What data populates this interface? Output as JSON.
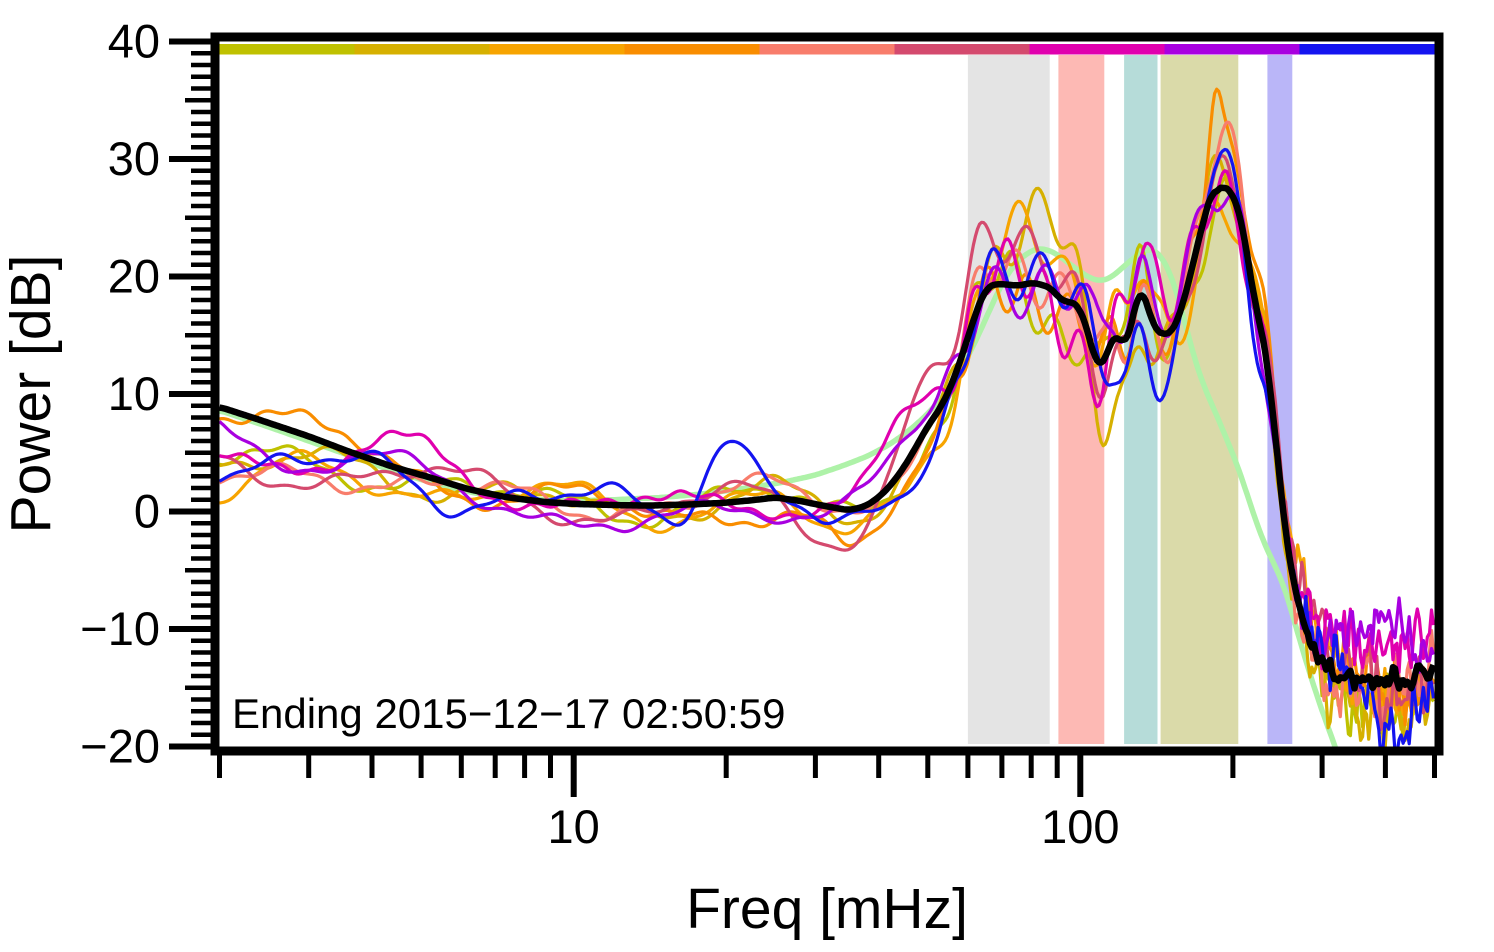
{
  "chart_data": {
    "type": "line",
    "title": "",
    "xlabel": "Freq [mHz]",
    "ylabel": "Power [dB]",
    "annotation": "Ending 2015−12−17 02:50:59",
    "x_axis": {
      "scale": "log",
      "min": 2,
      "max": 500,
      "unit": "mHz",
      "major_ticks": [
        {
          "value": 10,
          "label": "10"
        },
        {
          "value": 100,
          "label": "100"
        }
      ],
      "minor_ticks": [
        2,
        3,
        4,
        5,
        6,
        7,
        8,
        9,
        20,
        30,
        40,
        50,
        60,
        70,
        80,
        90,
        200,
        300,
        400,
        500
      ]
    },
    "y_axis": {
      "min": -20,
      "max": 40,
      "unit": "dB",
      "major_ticks": [
        {
          "value": 40,
          "label": "40"
        },
        {
          "value": 30,
          "label": "30"
        },
        {
          "value": 20,
          "label": "20"
        },
        {
          "value": 10,
          "label": "10"
        },
        {
          "value": 0,
          "label": "0"
        },
        {
          "value": -10,
          "label": "−10"
        },
        {
          "value": -20,
          "label": "−20"
        }
      ],
      "minor_step": 1,
      "medium_step": 5
    },
    "grid": false,
    "legend": "none",
    "highlight_bands": [
      {
        "name": "band-gray",
        "f_min": 60,
        "f_max": 87,
        "color": "#e4e4e4"
      },
      {
        "name": "band-pink",
        "f_min": 90.5,
        "f_max": 111.5,
        "color": "#fdb9b4"
      },
      {
        "name": "band-teal",
        "f_min": 122,
        "f_max": 142,
        "color": "#b6dcd9"
      },
      {
        "name": "band-olive",
        "f_min": 144,
        "f_max": 205,
        "color": "#dadaa9"
      },
      {
        "name": "band-lavender",
        "f_min": 234,
        "f_max": 262,
        "color": "#bab6f8"
      }
    ],
    "colorbar_segments": [
      "#bfc100",
      "#d6b000",
      "#f7a400",
      "#f98d00",
      "#f87d6c",
      "#d44a6e",
      "#e000ae",
      "#a800e0",
      "#1414f0"
    ],
    "series": {
      "mean": {
        "name": "mean-spectrum",
        "color": "#000000",
        "points": [
          [
            2,
            8.9
          ],
          [
            2.4,
            7.8
          ],
          [
            3,
            6.4
          ],
          [
            3.6,
            5.1
          ],
          [
            4.4,
            3.8
          ],
          [
            5.2,
            2.9
          ],
          [
            6.2,
            1.9
          ],
          [
            7.4,
            1.2
          ],
          [
            8.8,
            0.8
          ],
          [
            10,
            0.65
          ],
          [
            12,
            0.55
          ],
          [
            14,
            0.5
          ],
          [
            17,
            0.6
          ],
          [
            20,
            0.75
          ],
          [
            23,
            1.0
          ],
          [
            25,
            1.2
          ],
          [
            28,
            0.9
          ],
          [
            31,
            0.5
          ],
          [
            35,
            0.1
          ],
          [
            38,
            0.5
          ],
          [
            41,
            1.6
          ],
          [
            44,
            3.2
          ],
          [
            47,
            5.2
          ],
          [
            50,
            7.3
          ],
          [
            53,
            8.8
          ],
          [
            56,
            11.0
          ],
          [
            59,
            13.8
          ],
          [
            62,
            16.8
          ],
          [
            65,
            19.0
          ],
          [
            68,
            19.4
          ],
          [
            72,
            19.3
          ],
          [
            76,
            19.2
          ],
          [
            80,
            19.5
          ],
          [
            84,
            19.3
          ],
          [
            88,
            19.0
          ],
          [
            92,
            17.8
          ],
          [
            96,
            17.9
          ],
          [
            100,
            17.4
          ],
          [
            104,
            15.0
          ],
          [
            108,
            12.0
          ],
          [
            111,
            12.5
          ],
          [
            114,
            14.0
          ],
          [
            118,
            15.6
          ],
          [
            121,
            14.2
          ],
          [
            123,
            13.6
          ],
          [
            127,
            16.5
          ],
          [
            131,
            19.6
          ],
          [
            134,
            18.5
          ],
          [
            139,
            15.6
          ],
          [
            144,
            15.2
          ],
          [
            148,
            14.9
          ],
          [
            153,
            15.5
          ],
          [
            158,
            17.0
          ],
          [
            163,
            19.3
          ],
          [
            169,
            22.0
          ],
          [
            175,
            24.9
          ],
          [
            180,
            26.5
          ],
          [
            184,
            28.0
          ],
          [
            188,
            27.2
          ],
          [
            191,
            27.0
          ],
          [
            196,
            28.3
          ],
          [
            200,
            27.2
          ],
          [
            204,
            25.2
          ],
          [
            210,
            24.8
          ],
          [
            215,
            21.0
          ],
          [
            220,
            17.2
          ],
          [
            226,
            16.9
          ],
          [
            232,
            13.5
          ],
          [
            238,
            10.0
          ],
          [
            244,
            5.5
          ],
          [
            250,
            0.8
          ],
          [
            256,
            -3.4
          ],
          [
            262,
            -5.2
          ],
          [
            268,
            -7.6
          ],
          [
            275,
            -9.6
          ],
          [
            282,
            -11.0
          ],
          [
            292,
            -12.3
          ],
          [
            305,
            -13.4
          ],
          [
            320,
            -14.3
          ],
          [
            340,
            -14.0
          ],
          [
            360,
            -14.4
          ],
          [
            380,
            -14.1
          ],
          [
            400,
            -14.6
          ],
          [
            420,
            -13.9
          ],
          [
            440,
            -14.3
          ],
          [
            460,
            -14.0
          ],
          [
            480,
            -13.6
          ],
          [
            500,
            -13.2
          ]
        ]
      },
      "smooth_model": {
        "name": "smooth-model",
        "color": "#aef2a8",
        "points": [
          [
            2,
            8.6
          ],
          [
            2.5,
            7.2
          ],
          [
            3,
            6.0
          ],
          [
            3.7,
            4.6
          ],
          [
            4.5,
            3.3
          ],
          [
            5.5,
            2.2
          ],
          [
            6.5,
            1.5
          ],
          [
            8,
            1.05
          ],
          [
            10,
            0.9
          ],
          [
            12,
            1.0
          ],
          [
            15,
            1.2
          ],
          [
            18,
            1.5
          ],
          [
            22,
            2.0
          ],
          [
            26,
            2.5
          ],
          [
            30,
            3.1
          ],
          [
            34,
            3.9
          ],
          [
            38,
            4.7
          ],
          [
            42,
            5.7
          ],
          [
            46,
            6.9
          ],
          [
            50,
            8.3
          ],
          [
            54,
            10.0
          ],
          [
            58,
            12.0
          ],
          [
            62,
            14.4
          ],
          [
            66,
            17.0
          ],
          [
            70,
            19.4
          ],
          [
            74,
            21.0
          ],
          [
            78,
            21.9
          ],
          [
            82,
            22.4
          ],
          [
            86,
            22.3
          ],
          [
            90,
            21.9
          ],
          [
            95,
            21.1
          ],
          [
            100,
            20.4
          ],
          [
            105,
            19.8
          ],
          [
            110,
            19.6
          ],
          [
            115,
            19.9
          ],
          [
            120,
            20.6
          ],
          [
            126,
            21.4
          ],
          [
            132,
            22.1
          ],
          [
            137,
            22.4
          ],
          [
            142,
            22.1
          ],
          [
            147,
            21.2
          ],
          [
            152,
            19.8
          ],
          [
            157,
            17.8
          ],
          [
            162,
            15.6
          ],
          [
            167,
            13.4
          ],
          [
            172,
            11.6
          ],
          [
            178,
            10.0
          ],
          [
            184,
            8.6
          ],
          [
            190,
            7.2
          ],
          [
            196,
            5.8
          ],
          [
            203,
            4.2
          ],
          [
            210,
            2.4
          ],
          [
            218,
            0.2
          ],
          [
            228,
            -2.2
          ],
          [
            238,
            -4.0
          ],
          [
            248,
            -5.5
          ],
          [
            256,
            -7.2
          ],
          [
            264,
            -9.2
          ],
          [
            272,
            -11.2
          ],
          [
            282,
            -13.4
          ],
          [
            292,
            -15.5
          ],
          [
            302,
            -17.3
          ],
          [
            312,
            -19.0
          ],
          [
            322,
            -20.6
          ],
          [
            330,
            -22.0
          ]
        ]
      },
      "ensemble": [
        {
          "name": "spectrum-1",
          "color": "#bfc100",
          "seed": 101,
          "features": [
            [
              1.6,
              -5.2,
              0.22
            ],
            [
              88,
              -4,
              0.05
            ],
            [
              125,
              3.2,
              0.04
            ],
            [
              420,
              -1.5,
              0.25
            ]
          ]
        },
        {
          "name": "spectrum-2",
          "color": "#d6b000",
          "seed": 202,
          "features": [
            [
              1.6,
              -5.0,
              0.22
            ],
            [
              80,
              4,
              0.045
            ],
            [
              95,
              4.2,
              0.035
            ],
            [
              112,
              -4.5,
              0.04
            ],
            [
              400,
              -1.5,
              0.25
            ]
          ]
        },
        {
          "name": "spectrum-3",
          "color": "#f7a400",
          "seed": 303,
          "features": [
            [
              1.6,
              -7.6,
              0.22
            ],
            [
              33,
              -3.2,
              0.06
            ],
            [
              75,
              3,
              0.05
            ],
            [
              128,
              3.5,
              0.04
            ]
          ]
        },
        {
          "name": "spectrum-4",
          "color": "#f98d00",
          "seed": 404,
          "features": [
            [
              2.6,
              0.6,
              0.2
            ],
            [
              25,
              -1.8,
              0.08
            ],
            [
              35,
              -3.8,
              0.05
            ],
            [
              90,
              -3,
              0.05
            ],
            [
              160,
              3,
              0.05
            ],
            [
              184,
              8,
              0.013
            ],
            [
              215,
              3,
              0.03
            ]
          ]
        },
        {
          "name": "spectrum-5",
          "color": "#f87d6c",
          "seed": 505,
          "features": [
            [
              1.6,
              -7.2,
              0.22
            ],
            [
              28,
              1.2,
              0.08
            ],
            [
              100,
              2,
              0.05
            ],
            [
              190,
              3.2,
              0.02
            ]
          ]
        },
        {
          "name": "spectrum-6",
          "color": "#d44a6e",
          "seed": 606,
          "features": [
            [
              1.6,
              -5.6,
              0.22
            ],
            [
              30,
              -2.5,
              0.07
            ],
            [
              48,
              5.5,
              0.05
            ],
            [
              63,
              4,
              0.04
            ],
            [
              185,
              2,
              0.03
            ]
          ]
        },
        {
          "name": "spectrum-7",
          "color": "#e000ae",
          "seed": 707,
          "features": [
            [
              1.6,
              -4.4,
              0.22
            ],
            [
              5,
              2.2,
              0.1
            ],
            [
              45,
              3.5,
              0.05
            ],
            [
              70,
              2.5,
              0.05
            ],
            [
              100,
              -3,
              0.04
            ],
            [
              130,
              2.5,
              0.04
            ],
            [
              400,
              2.8,
              0.2
            ]
          ]
        },
        {
          "name": "spectrum-8",
          "color": "#a800e0",
          "seed": 808,
          "features": [
            [
              1.6,
              -2.4,
              0.25
            ],
            [
              13,
              -2.4,
              0.1
            ],
            [
              60,
              2,
              0.05
            ],
            [
              105,
              2.5,
              0.04
            ],
            [
              400,
              2.2,
              0.2
            ]
          ]
        },
        {
          "name": "spectrum-9",
          "color": "#1414f0",
          "seed": 909,
          "features": [
            [
              1.6,
              -4.4,
              0.25
            ],
            [
              20,
              5.6,
              0.045
            ],
            [
              33,
              -2.6,
              0.06
            ],
            [
              120,
              -2,
              0.05
            ],
            [
              182,
              2.5,
              0.02
            ],
            [
              230,
              -3,
              0.03
            ],
            [
              420,
              -1,
              0.25
            ]
          ]
        }
      ]
    }
  }
}
